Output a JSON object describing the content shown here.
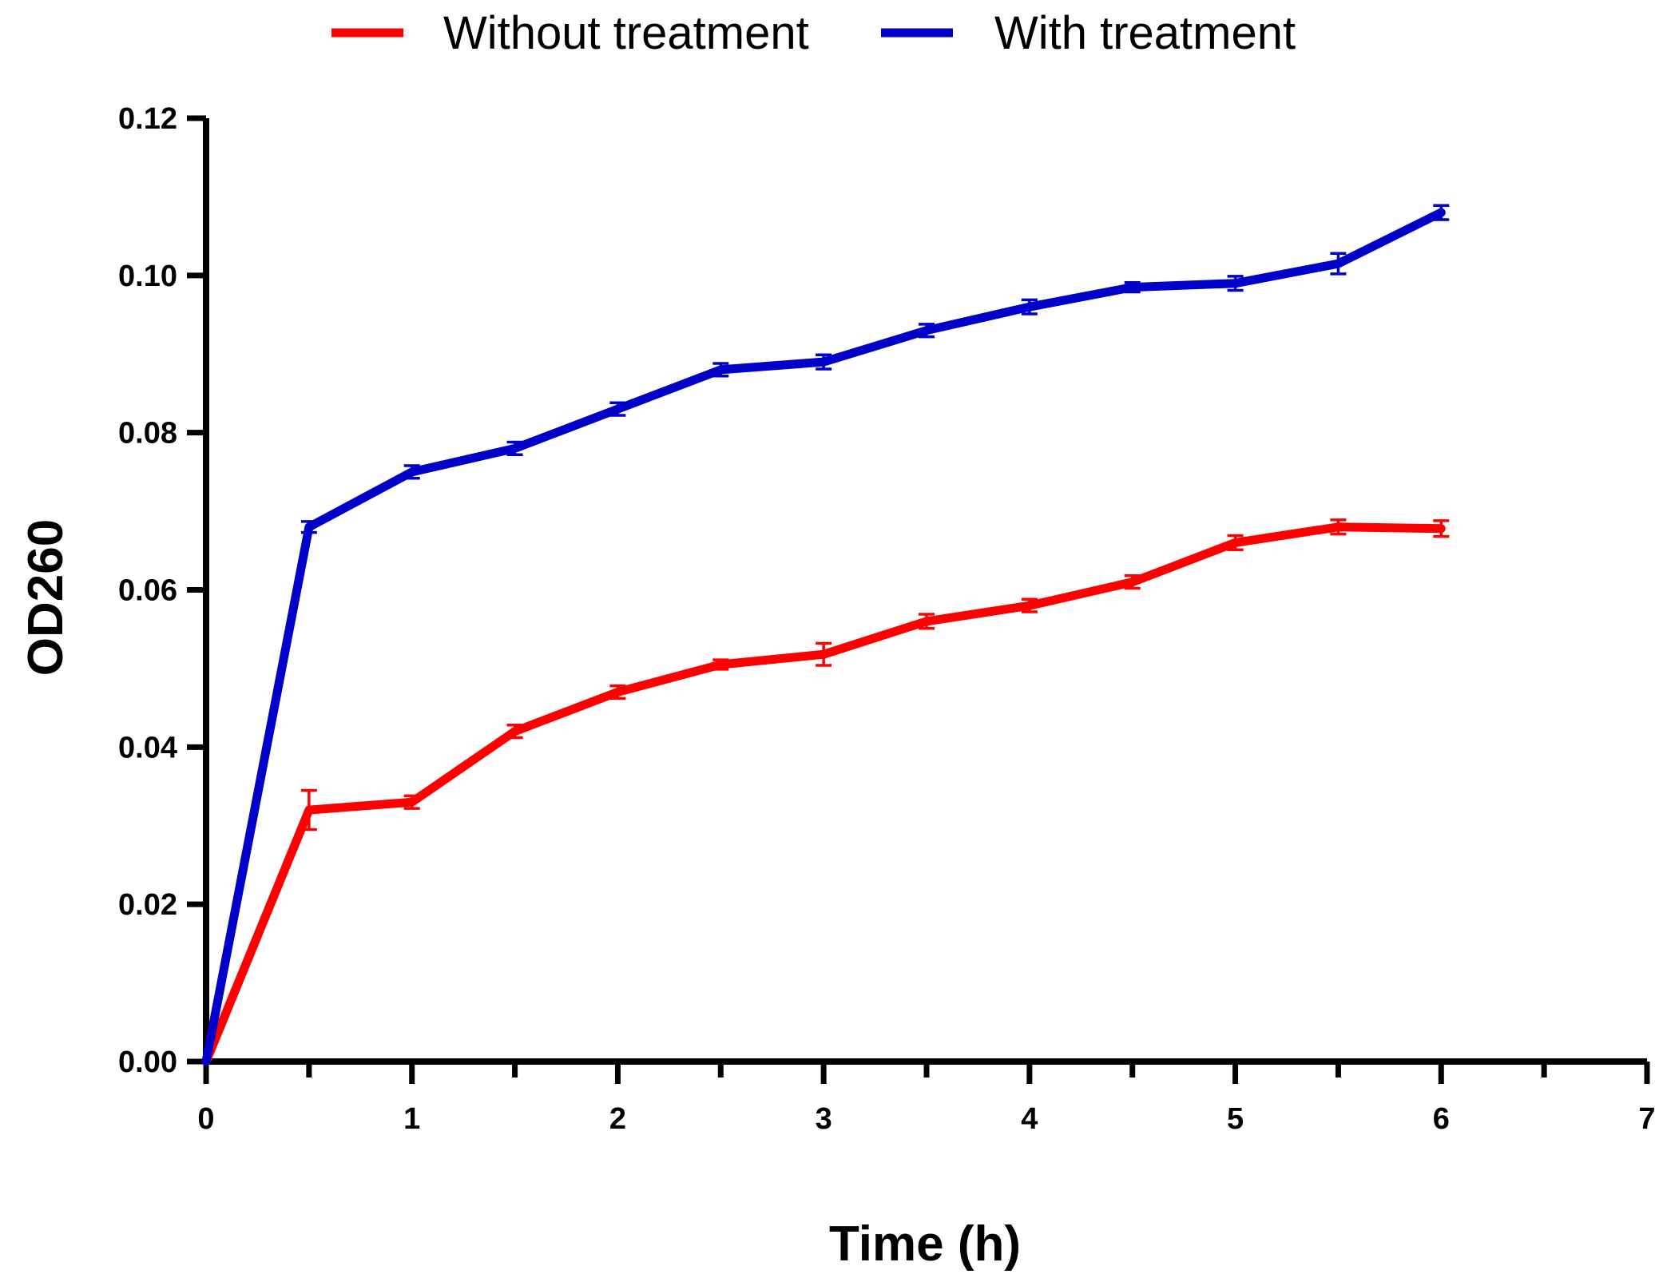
{
  "chart_data": {
    "type": "line",
    "title": "",
    "xlabel": "Time (h)",
    "ylabel": "OD260",
    "xlim": [
      0,
      7
    ],
    "ylim": [
      0,
      0.12
    ],
    "x_ticks": [
      0,
      1,
      2,
      3,
      4,
      5,
      6,
      7
    ],
    "x_tick_labels": [
      "0",
      "1",
      "2",
      "3",
      "4",
      "5",
      "6",
      "7"
    ],
    "x_minor_ticks": [
      0.5,
      1.5,
      2.5,
      3.5,
      4.5,
      5.5,
      6.5
    ],
    "y_ticks": [
      0,
      0.02,
      0.04,
      0.06,
      0.08,
      0.1,
      0.12
    ],
    "y_tick_labels": [
      "0.00",
      "0.02",
      "0.04",
      "0.06",
      "0.08",
      "0.10",
      "0.12"
    ],
    "grid": false,
    "legend_position": "top",
    "x": [
      0,
      0.5,
      1,
      1.5,
      2,
      2.5,
      3,
      3.5,
      4,
      4.5,
      5,
      5.5,
      6
    ],
    "series": [
      {
        "name": "Without treatment",
        "color": "#ff0000",
        "values": [
          0,
          0.032,
          0.033,
          0.042,
          0.047,
          0.0505,
          0.0518,
          0.056,
          0.058,
          0.061,
          0.066,
          0.068,
          0.0678
        ],
        "errors": [
          0,
          0.0025,
          0.0008,
          0.0008,
          0.0008,
          0.0006,
          0.0014,
          0.0009,
          0.0008,
          0.0008,
          0.0009,
          0.0009,
          0.001
        ]
      },
      {
        "name": "With treatment",
        "color": "#0000c8",
        "values": [
          0,
          0.068,
          0.075,
          0.078,
          0.083,
          0.088,
          0.089,
          0.093,
          0.096,
          0.0985,
          0.099,
          0.1015,
          0.108
        ],
        "errors": [
          0,
          0.0007,
          0.0008,
          0.0008,
          0.0008,
          0.0008,
          0.0009,
          0.0008,
          0.0009,
          0.0006,
          0.0009,
          0.0013,
          0.0009
        ]
      }
    ]
  }
}
